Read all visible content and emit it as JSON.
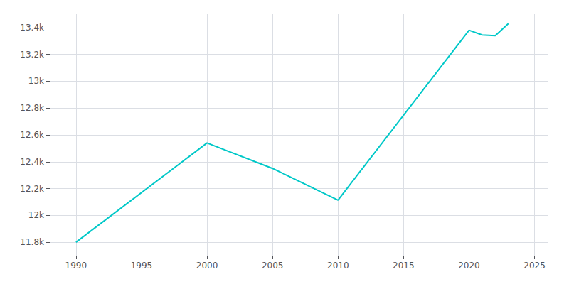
{
  "chart_data": {
    "type": "line",
    "x": [
      1990,
      2000,
      2005,
      2010,
      2020,
      2021,
      2022,
      2023
    ],
    "values": [
      11800,
      12540,
      12350,
      12114,
      13380,
      13345,
      13340,
      13430
    ],
    "color": "#00c8c8",
    "xlim": [
      1988,
      2026
    ],
    "xticks": [
      1990,
      1995,
      2000,
      2005,
      2010,
      2015,
      2020,
      2025
    ],
    "ylim": [
      11700,
      13500
    ],
    "yticks": [
      {
        "value": 11800,
        "label": "11.8k"
      },
      {
        "value": 12000,
        "label": "12k"
      },
      {
        "value": 12200,
        "label": "12.2k"
      },
      {
        "value": 12400,
        "label": "12.4k"
      },
      {
        "value": 12600,
        "label": "12.6k"
      },
      {
        "value": 12800,
        "label": "12.8k"
      },
      {
        "value": 13000,
        "label": "13k"
      },
      {
        "value": 13200,
        "label": "13.2k"
      },
      {
        "value": 13400,
        "label": "13.4k"
      }
    ],
    "grid": true
  }
}
